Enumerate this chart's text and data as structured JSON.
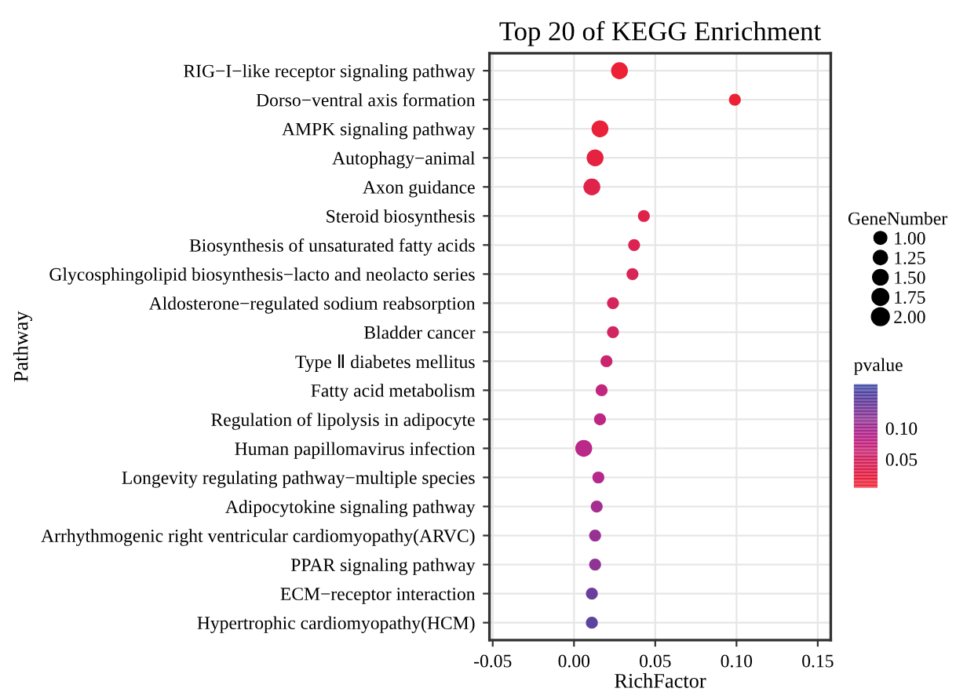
{
  "chart_data": {
    "type": "bubble",
    "title": "Top 20 of KEGG Enrichment",
    "xlabel": "RichFactor",
    "ylabel": "Pathway",
    "legend_title": "GeneNumber",
    "clabel": "pvalue",
    "categories": [
      "RIG−I−like receptor signaling pathway",
      "Dorso−ventral axis formation",
      "AMPK signaling pathway",
      "Autophagy−animal",
      "Axon guidance",
      "Steroid biosynthesis",
      "Biosynthesis of unsaturated fatty acids",
      "Glycosphingolipid biosynthesis−lacto and neolacto series",
      "Aldosterone−regulated sodium reabsorption",
      "Bladder cancer",
      "Type Ⅱ diabetes mellitus",
      "Fatty acid metabolism",
      "Regulation of lipolysis in adipocyte",
      "Human papillomavirus infection",
      "Longevity regulating pathway−multiple species",
      "Adipocytokine signaling pathway",
      "Arrhythmogenic right ventricular cardiomyopathy(ARVC)",
      "PPAR signaling pathway",
      "ECM−receptor interaction",
      "Hypertrophic cardiomyopathy(HCM)"
    ],
    "values": [
      0.028,
      0.099,
      0.016,
      0.013,
      0.011,
      0.043,
      0.037,
      0.036,
      0.024,
      0.024,
      0.02,
      0.017,
      0.016,
      0.006,
      0.015,
      0.014,
      0.013,
      0.013,
      0.011,
      0.011
    ],
    "sizes": [
      2,
      1,
      2,
      2,
      2,
      1,
      1,
      1,
      1,
      1,
      1,
      1,
      1,
      2,
      1,
      1,
      1,
      1,
      1,
      1
    ],
    "size_legend": [
      {
        "value": 1,
        "label": "1.00"
      },
      {
        "value": 1.25,
        "label": "1.25"
      },
      {
        "value": 1.5,
        "label": "1.50"
      },
      {
        "value": 1.75,
        "label": "1.75"
      },
      {
        "value": 2,
        "label": "2.00"
      }
    ],
    "orientation": "horizontal",
    "cvalues": [
      0.01,
      0.01,
      0.015,
      0.02,
      0.03,
      0.03,
      0.035,
      0.04,
      0.045,
      0.05,
      0.06,
      0.075,
      0.08,
      0.085,
      0.09,
      0.1,
      0.11,
      0.115,
      0.14,
      0.15
    ],
    "clim": [
      0.004,
      0.171
    ],
    "cticks": [
      {
        "value": 0.05,
        "label": "0.05"
      },
      {
        "value": 0.1,
        "label": "0.10"
      }
    ],
    "xlim": [
      -0.052,
      0.158
    ],
    "xticks": [
      {
        "value": -0.05,
        "label": "-0.05"
      },
      {
        "value": 0.0,
        "label": "0.00"
      },
      {
        "value": 0.05,
        "label": "0.05"
      },
      {
        "value": 0.1,
        "label": "0.10"
      },
      {
        "value": 0.15,
        "label": "0.15"
      }
    ],
    "grid": true
  }
}
